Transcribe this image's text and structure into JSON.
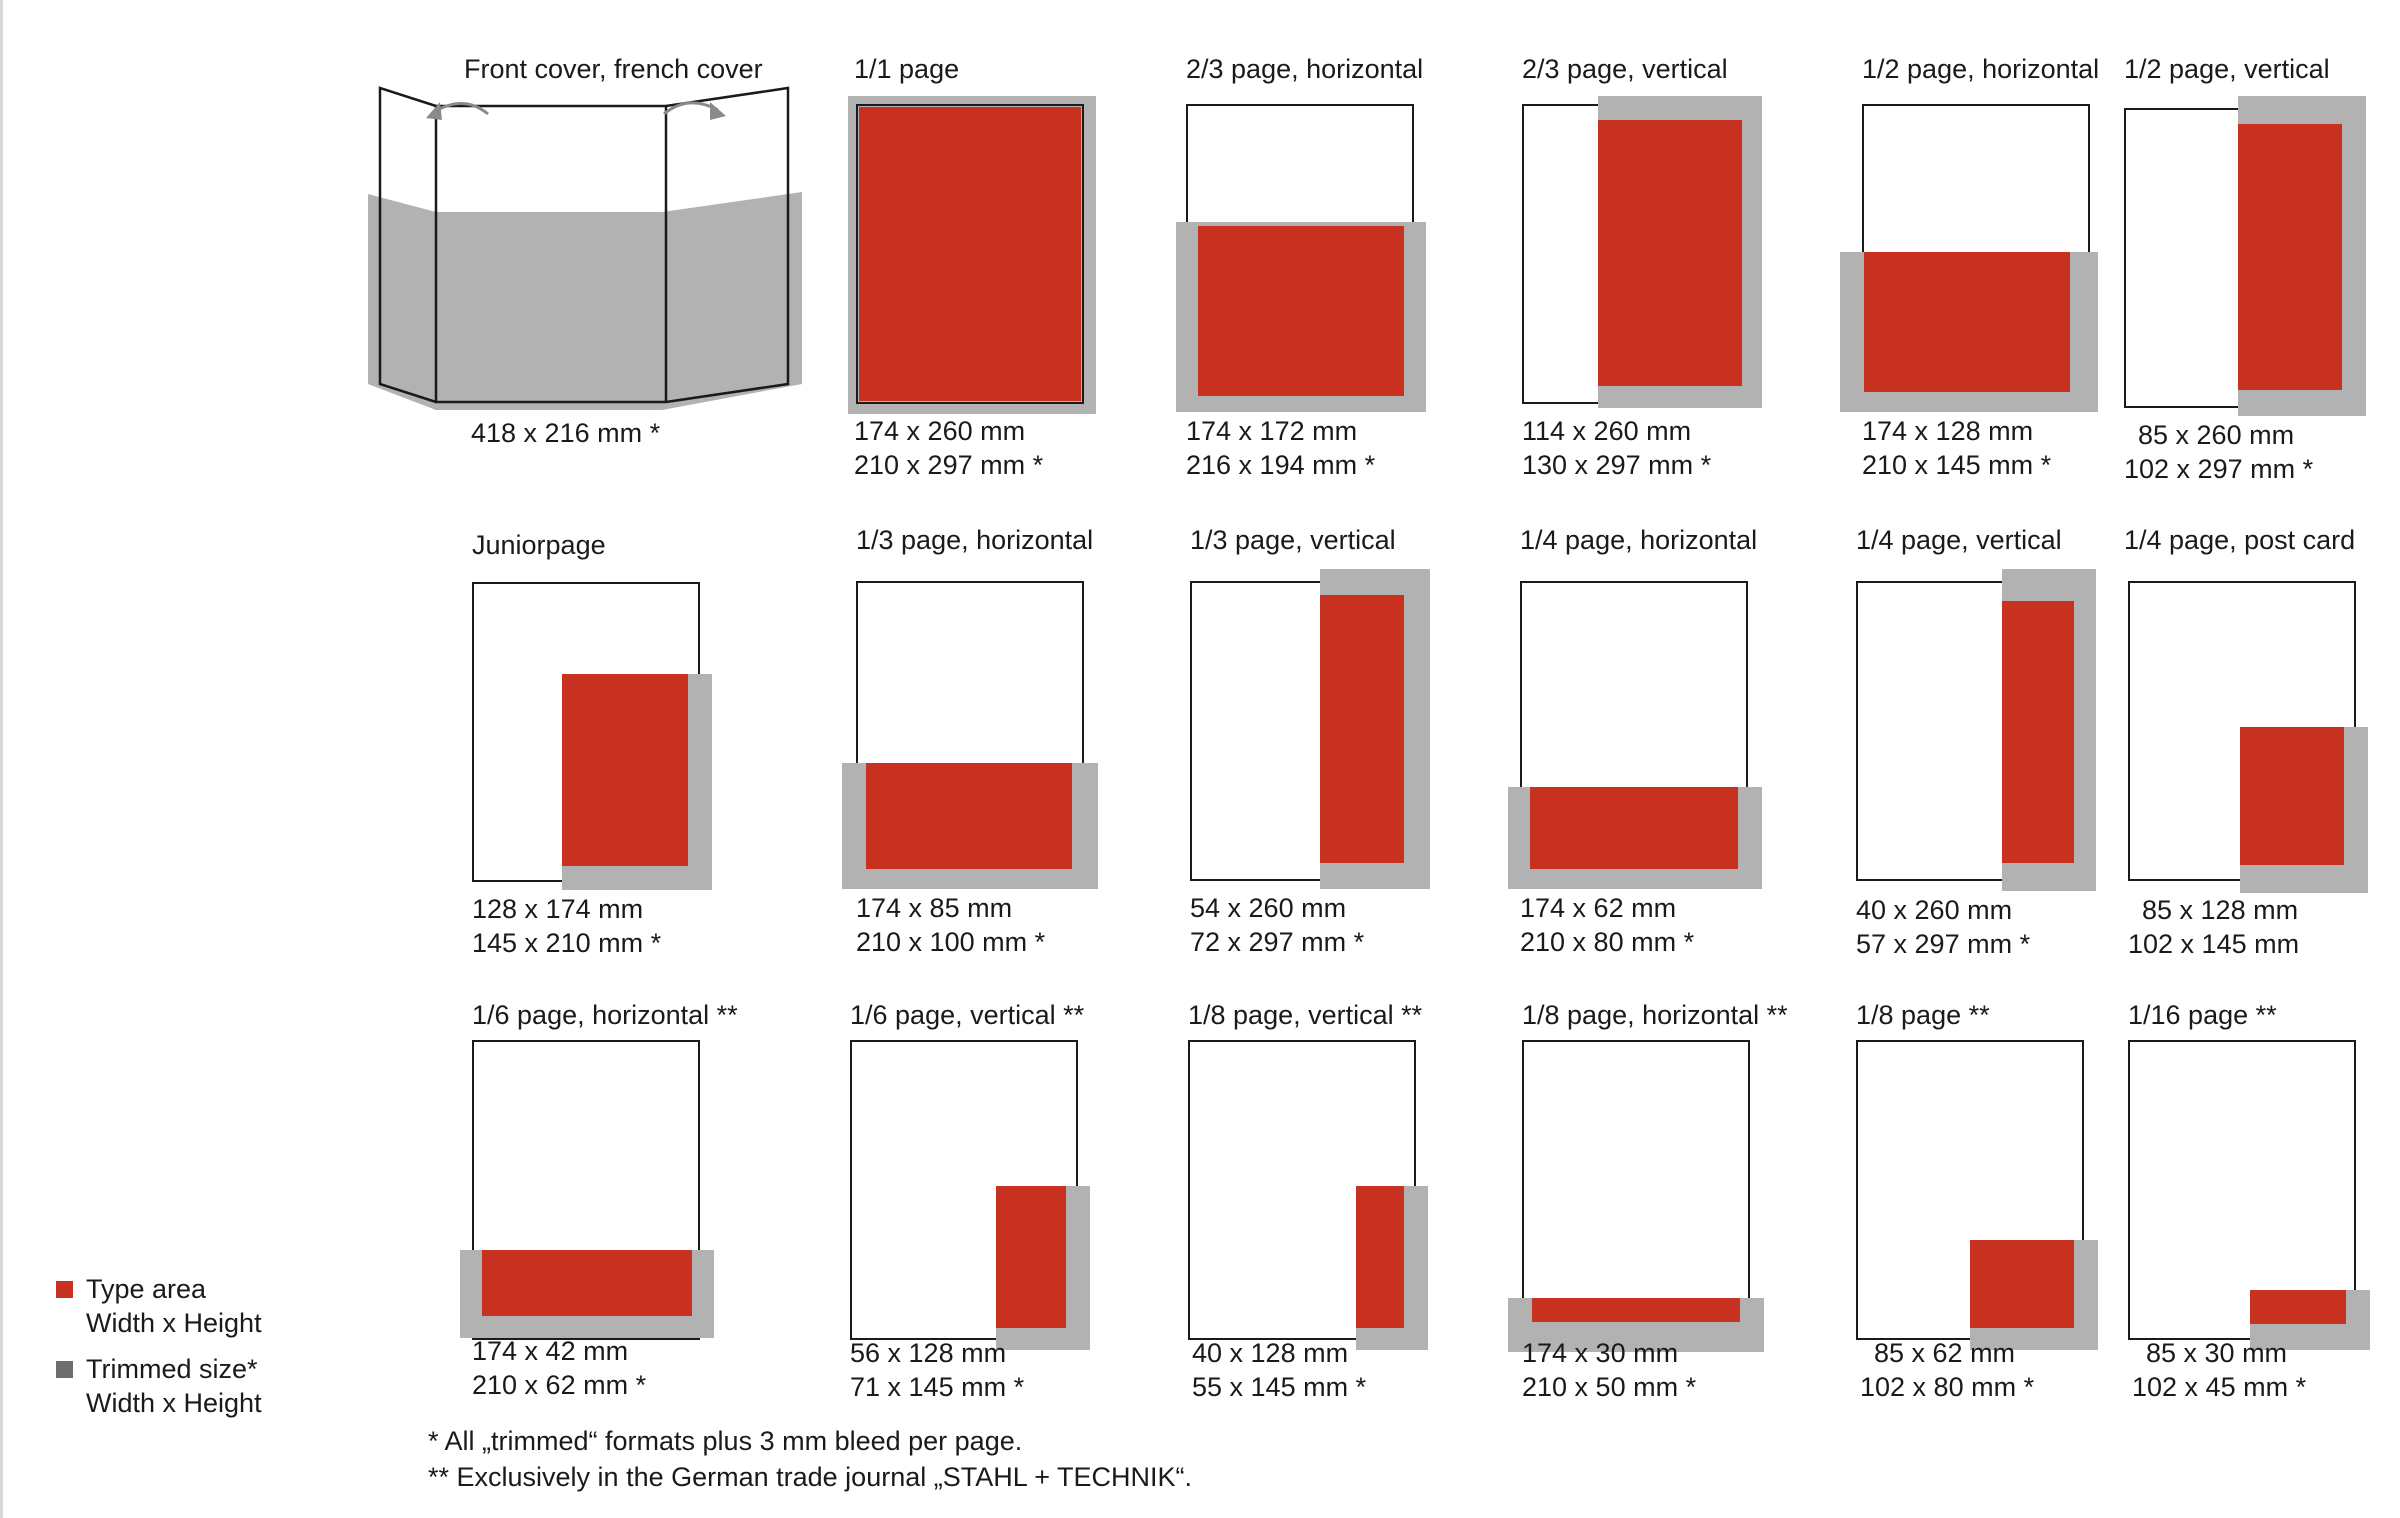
{
  "colors": {
    "type_area": "#c83020",
    "trimmed": "#b2b2b2",
    "trimmed_legend": "#6e6e6e",
    "outline": "#1a1a1a"
  },
  "cover": {
    "title": "Front cover, french cover",
    "size": "418 x 216 mm *",
    "icon": "fold-out-arrow-icon"
  },
  "formats": [
    {
      "id": "1-1-page",
      "title": "1/1 page",
      "type_size": "174 x 260 mm",
      "trim_size": "210 x 297 mm *"
    },
    {
      "id": "2-3-page-horizontal",
      "title": "2/3 page, horizontal",
      "type_size": "174 x 172 mm",
      "trim_size": "216 x 194 mm *"
    },
    {
      "id": "2-3-page-vertical",
      "title": "2/3 page, vertical",
      "type_size": "114 x 260 mm",
      "trim_size": "130 x 297 mm *"
    },
    {
      "id": "1-2-page-horizontal",
      "title": "1/2 page, horizontal",
      "type_size": "174 x 128 mm",
      "trim_size": "210 x 145 mm *"
    },
    {
      "id": "1-2-page-vertical",
      "title": "1/2 page, vertical",
      "type_size": "85 x 260 mm",
      "trim_size": "102 x 297 mm *"
    },
    {
      "id": "juniorpage",
      "title": "Juniorpage",
      "type_size": "128 x 174 mm",
      "trim_size": "145 x 210 mm *"
    },
    {
      "id": "1-3-page-horizontal",
      "title": "1/3 page, horizontal",
      "type_size": "174 x   85 mm",
      "trim_size": "210 x 100 mm *"
    },
    {
      "id": "1-3-page-vertical",
      "title": "1/3 page, vertical",
      "type_size": "54 x 260 mm",
      "trim_size": "72 x 297 mm *"
    },
    {
      "id": "1-4-page-horizontal",
      "title": "1/4 page, horizontal",
      "type_size": "174 x 62 mm",
      "trim_size": "210 x 80 mm *"
    },
    {
      "id": "1-4-page-vertical",
      "title": "1/4 page, vertical",
      "type_size": "40 x 260 mm",
      "trim_size": "57 x 297 mm *"
    },
    {
      "id": "1-4-page-post-card",
      "title": "1/4 page, post card",
      "type_size": "85 x 128 mm",
      "trim_size": "102 x 145 mm"
    },
    {
      "id": "1-6-page-horizontal",
      "title": "1/6 page, horizontal **",
      "type_size": "174 x 42 mm",
      "trim_size": "210 x 62 mm *"
    },
    {
      "id": "1-6-page-vertical",
      "title": "1/6 page, vertical **",
      "type_size": "56 x 128 mm",
      "trim_size": "71 x 145 mm *"
    },
    {
      "id": "1-8-page-vertical",
      "title": "1/8 page, vertical **",
      "type_size": "40 x 128 mm",
      "trim_size": "55 x 145 mm *"
    },
    {
      "id": "1-8-page-horizontal",
      "title": "1/8 page, horizontal **",
      "type_size": "174 x 30 mm",
      "trim_size": "210 x 50 mm *"
    },
    {
      "id": "1-8-page",
      "title": "1/8 page **",
      "type_size": "85 x 62 mm",
      "trim_size": "102 x 80 mm *"
    },
    {
      "id": "1-16-page",
      "title": "1/16 page **",
      "type_size": "85 x 30 mm",
      "trim_size": "102 x 45 mm *"
    }
  ],
  "legend": {
    "type_area": {
      "line1": "Type area",
      "line2": "Width x Height"
    },
    "trimmed": {
      "line1": "Trimmed size*",
      "line2": "Width x Height"
    }
  },
  "footnotes": {
    "single": "*  All „trimmed“ formats plus 3 mm bleed per page.",
    "double": "** Exclusively in the German trade journal „STAHL + TECHNIK“."
  }
}
